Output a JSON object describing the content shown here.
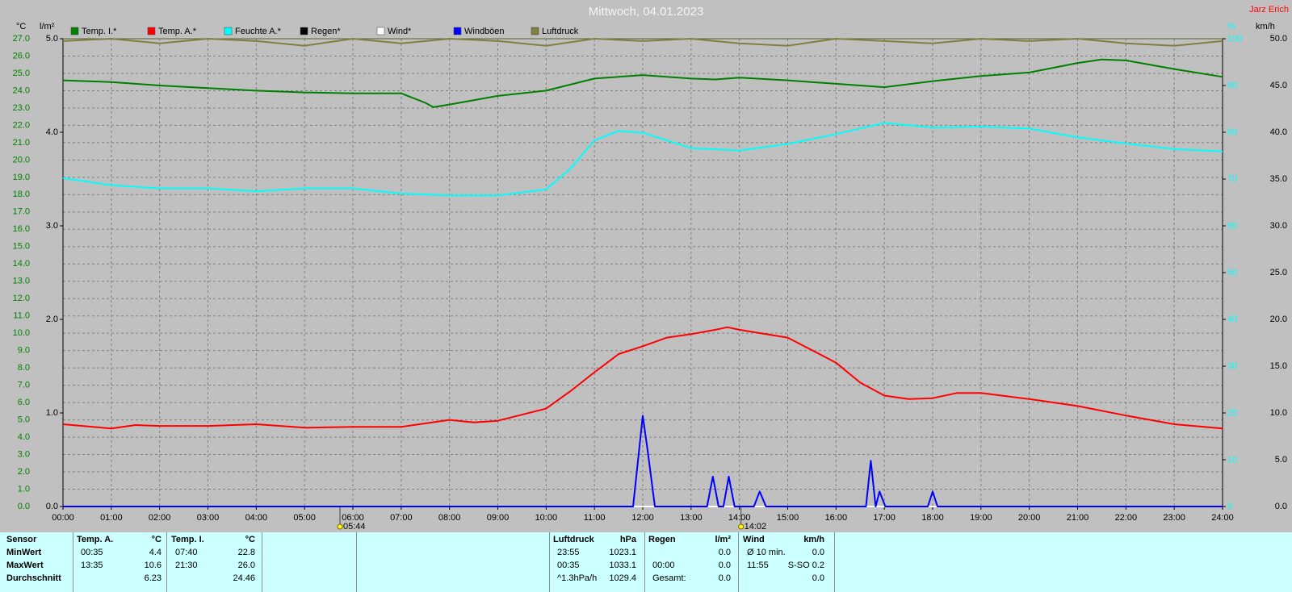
{
  "chart_data": {
    "type": "line",
    "title": "Mittwoch, 04.01.2023",
    "credit": "Jarz Erich",
    "y_label": "°C",
    "y2_label": "l/m²",
    "y3_label": "%",
    "y4_label": "km/h",
    "grid": true,
    "xlim": [
      0,
      24
    ],
    "xticks": [
      {
        "value": 0,
        "label": "00:00"
      },
      {
        "value": 1,
        "label": "01:00"
      },
      {
        "value": 2,
        "label": "02:00"
      },
      {
        "value": 3,
        "label": "03:00"
      },
      {
        "value": 4,
        "label": "04:00"
      },
      {
        "value": 5,
        "label": "05:00"
      },
      {
        "value": 6,
        "label": "06:00"
      },
      {
        "value": 7,
        "label": "07:00"
      },
      {
        "value": 8,
        "label": "08:00"
      },
      {
        "value": 9,
        "label": "09:00"
      },
      {
        "value": 10,
        "label": "10:00"
      },
      {
        "value": 11,
        "label": "11:00"
      },
      {
        "value": 12,
        "label": "12:00"
      },
      {
        "value": 13,
        "label": "13:00"
      },
      {
        "value": 14,
        "label": "14:00"
      },
      {
        "value": 15,
        "label": "15:00"
      },
      {
        "value": 16,
        "label": "16:00"
      },
      {
        "value": 17,
        "label": "17:00"
      },
      {
        "value": 18,
        "label": "18:00"
      },
      {
        "value": 19,
        "label": "19:00"
      },
      {
        "value": 20,
        "label": "20:00"
      },
      {
        "value": 21,
        "label": "21:00"
      },
      {
        "value": 22,
        "label": "22:00"
      },
      {
        "value": 23,
        "label": "23:00"
      },
      {
        "value": 24,
        "label": "24:00"
      }
    ],
    "ylim": [
      0,
      27
    ],
    "yticks": [
      {
        "value": 0,
        "label": "0.0"
      },
      {
        "value": 1,
        "label": "1.0"
      },
      {
        "value": 2,
        "label": "2.0"
      },
      {
        "value": 3,
        "label": "3.0"
      },
      {
        "value": 4,
        "label": "4.0"
      },
      {
        "value": 5,
        "label": "5.0"
      },
      {
        "value": 6,
        "label": "6.0"
      },
      {
        "value": 7,
        "label": "7.0"
      },
      {
        "value": 8,
        "label": "8.0"
      },
      {
        "value": 9,
        "label": "9.0"
      },
      {
        "value": 10,
        "label": "10.0"
      },
      {
        "value": 11,
        "label": "11.0"
      },
      {
        "value": 12,
        "label": "12.0"
      },
      {
        "value": 13,
        "label": "13.0"
      },
      {
        "value": 14,
        "label": "14.0"
      },
      {
        "value": 15,
        "label": "15.0"
      },
      {
        "value": 16,
        "label": "16.0"
      },
      {
        "value": 17,
        "label": "17.0"
      },
      {
        "value": 18,
        "label": "18.0"
      },
      {
        "value": 19,
        "label": "19.0"
      },
      {
        "value": 20,
        "label": "20.0"
      },
      {
        "value": 21,
        "label": "21.0"
      },
      {
        "value": 22,
        "label": "22.0"
      },
      {
        "value": 23,
        "label": "23.0"
      },
      {
        "value": 24,
        "label": "24.0"
      },
      {
        "value": 25,
        "label": "25.0"
      },
      {
        "value": 26,
        "label": "26.0"
      },
      {
        "value": 27,
        "label": "27.0"
      }
    ],
    "y2lim": [
      0,
      5
    ],
    "y2ticks": [
      {
        "value": 0,
        "label": "0.0"
      },
      {
        "value": 1,
        "label": "1.0"
      },
      {
        "value": 2,
        "label": "2.0"
      },
      {
        "value": 3,
        "label": "3.0"
      },
      {
        "value": 4,
        "label": "4.0"
      },
      {
        "value": 5,
        "label": "5.0"
      }
    ],
    "y3lim": [
      0,
      100
    ],
    "y3ticks": [
      0,
      10,
      20,
      30,
      40,
      50,
      60,
      70,
      80,
      90,
      100
    ],
    "y4lim": [
      0,
      50
    ],
    "y4ticks": [
      {
        "value": 0,
        "label": "0.0"
      },
      {
        "value": 5,
        "label": "5.0"
      },
      {
        "value": 10,
        "label": "10.0"
      },
      {
        "value": 15,
        "label": "15.0"
      },
      {
        "value": 20,
        "label": "20.0"
      },
      {
        "value": 25,
        "label": "25.0"
      },
      {
        "value": 30,
        "label": "30.0"
      },
      {
        "value": 35,
        "label": "35.0"
      },
      {
        "value": 40,
        "label": "40.0"
      },
      {
        "value": 45,
        "label": "45.0"
      },
      {
        "value": 50,
        "label": "50.0"
      }
    ],
    "annotations": [
      {
        "x": 5.733,
        "label": "05:44"
      },
      {
        "x": 14.033,
        "label": "14:02"
      }
    ],
    "series": [
      {
        "name": "Temp. I.*",
        "color": "#008000",
        "axis": "y",
        "x": [
          0,
          1,
          2,
          3,
          4,
          5,
          6,
          7,
          7.5,
          7.667,
          8,
          9,
          10,
          11,
          12,
          13,
          13.5,
          14,
          15,
          16,
          17,
          18,
          19,
          20,
          21,
          21.5,
          22,
          23,
          24
        ],
        "values": [
          24.6,
          24.5,
          24.3,
          24.15,
          24.0,
          23.9,
          23.85,
          23.85,
          23.3,
          23.05,
          23.2,
          23.7,
          24.0,
          24.7,
          24.9,
          24.7,
          24.65,
          24.75,
          24.6,
          24.4,
          24.2,
          24.55,
          24.85,
          25.05,
          25.6,
          25.8,
          25.75,
          25.25,
          24.8
        ]
      },
      {
        "name": "Temp. A.*",
        "color": "#ff0000",
        "axis": "y",
        "x": [
          0,
          1,
          1.5,
          2,
          3,
          4,
          5,
          6,
          7,
          8,
          8.5,
          9,
          10,
          10.5,
          11,
          11.5,
          12,
          12.5,
          13,
          13.5,
          13.75,
          14,
          15,
          16,
          16.5,
          17,
          17.5,
          18,
          18.5,
          19,
          20,
          21,
          22,
          23,
          24
        ],
        "values": [
          4.75,
          4.5,
          4.7,
          4.65,
          4.65,
          4.75,
          4.55,
          4.6,
          4.6,
          5.0,
          4.85,
          4.95,
          5.65,
          6.65,
          7.75,
          8.8,
          9.25,
          9.75,
          9.95,
          10.2,
          10.35,
          10.2,
          9.75,
          8.3,
          7.15,
          6.4,
          6.2,
          6.25,
          6.55,
          6.55,
          6.2,
          5.8,
          5.25,
          4.75,
          4.5
        ]
      },
      {
        "name": "Feuchte A.*",
        "color": "#00ffff",
        "axis": "y3",
        "x": [
          0,
          1,
          2,
          3,
          4,
          5,
          6,
          7,
          8,
          9,
          10,
          10.5,
          11,
          11.5,
          12,
          13,
          14,
          15,
          16,
          17,
          18,
          19,
          20,
          21,
          22,
          23,
          24
        ],
        "values": [
          70.2,
          68.7,
          68.0,
          68.0,
          67.4,
          68.0,
          68.0,
          66.9,
          66.5,
          66.5,
          67.8,
          72.2,
          78.3,
          80.3,
          79.9,
          76.6,
          76.1,
          77.5,
          79.6,
          82.0,
          81.0,
          81.2,
          80.8,
          78.9,
          77.6,
          76.4,
          75.9
        ]
      },
      {
        "name": "Regen*",
        "color": "#000000",
        "axis": "y2",
        "x": [
          0,
          24
        ],
        "values": [
          0,
          0
        ]
      },
      {
        "name": "Wind*",
        "color": "#ffffff",
        "axis": "y4",
        "x": [
          0,
          24
        ],
        "values": [
          0,
          0
        ]
      },
      {
        "name": "Windböen",
        "color": "#0000ff",
        "axis": "y4",
        "x": [
          0,
          11.8,
          12.0,
          12.1,
          12.25,
          13.33,
          13.45,
          13.57,
          13.67,
          13.78,
          13.9,
          14.3,
          14.42,
          14.55,
          16.62,
          16.72,
          16.82,
          16.9,
          17.02,
          17.9,
          18.0,
          18.1,
          24
        ],
        "values": [
          0,
          0,
          9.7,
          6,
          0,
          0,
          3.2,
          0,
          0,
          3.2,
          0,
          0,
          1.6,
          0,
          0,
          4.9,
          0,
          1.6,
          0,
          0,
          1.6,
          0,
          0
        ]
      },
      {
        "name": "Luftdruck",
        "color": "#808040",
        "axis": "y3",
        "x": [
          0,
          1,
          2,
          3,
          4,
          5,
          6,
          7,
          8,
          9,
          10,
          11,
          12,
          13,
          14,
          15,
          16,
          17,
          18,
          19,
          20,
          21,
          22,
          23,
          24
        ],
        "values": [
          99.5,
          100,
          99,
          100,
          99.5,
          98.5,
          100,
          99,
          100,
          99.5,
          98.5,
          100,
          99.5,
          100,
          99,
          98.5,
          100,
          99.5,
          99,
          100,
          99.5,
          100,
          99,
          98.5,
          99.5
        ]
      }
    ]
  },
  "stats": {
    "sensor": {
      "header": "Sensor",
      "rows": [
        "MinWert",
        "MaxWert",
        "Durchschnitt"
      ]
    },
    "blocks": [
      {
        "name": "Temp. A.",
        "unit": "°C",
        "rows": [
          {
            "time": "00:35",
            "value": "4.4"
          },
          {
            "time": "13:35",
            "value": "10.6"
          },
          {
            "value": "6.23"
          }
        ]
      },
      {
        "name": "Temp. I.",
        "unit": "°C",
        "rows": [
          {
            "time": "07:40",
            "value": "22.8"
          },
          {
            "time": "21:30",
            "value": "26.0"
          },
          {
            "value": "24.46"
          }
        ]
      },
      {
        "name": "Luftdruck",
        "unit": "hPa",
        "rows": [
          {
            "time": "23:55",
            "value": "1023.1"
          },
          {
            "time": "00:35",
            "value": "1033.1"
          },
          {
            "time": "^1.3hPa/h",
            "value": "1029.4"
          }
        ]
      },
      {
        "name": "Regen",
        "unit": "l/m²",
        "rows": [
          {
            "value": "0.0"
          },
          {
            "time": "00:00",
            "value": "0.0"
          },
          {
            "time": "Gesamt:",
            "value": "0.0"
          }
        ]
      },
      {
        "name": "Wind",
        "unit": "km/h",
        "rows": [
          {
            "time": "Ø 10 min.",
            "value": "0.0"
          },
          {
            "time": "11:55",
            "value": "S-SO 0.2"
          },
          {
            "value": "0.0"
          }
        ]
      }
    ]
  }
}
